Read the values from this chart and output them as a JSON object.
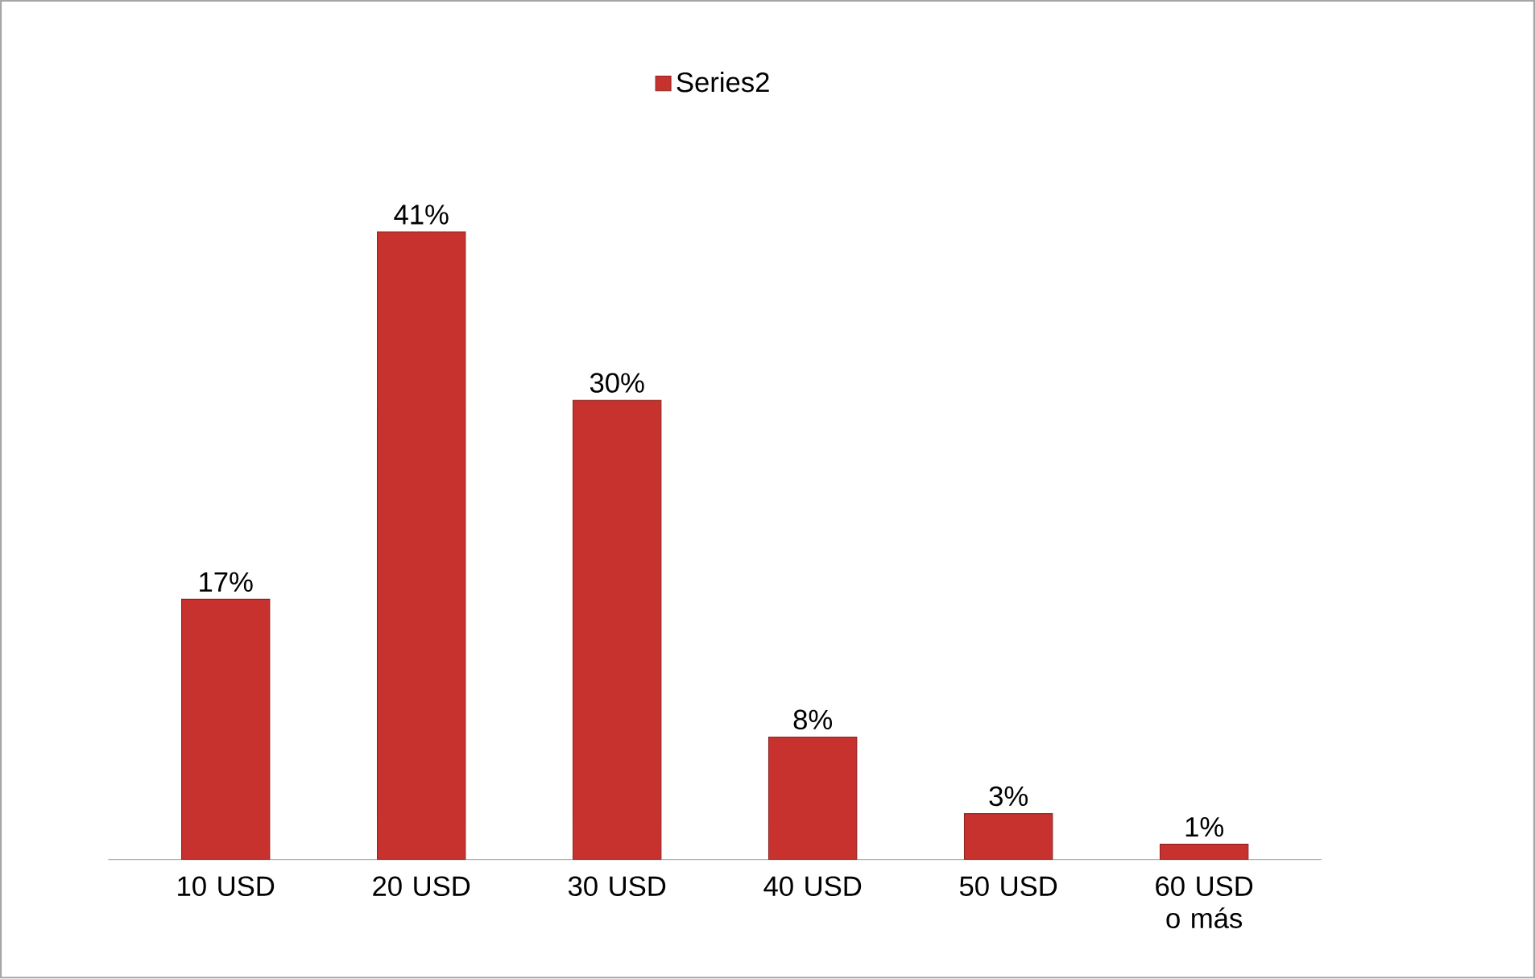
{
  "chart_data": {
    "type": "bar",
    "categories": [
      "10 USD",
      "20 USD",
      "30 USD",
      "40 USD",
      "50 USD",
      "60 USD o más"
    ],
    "series": [
      {
        "name": "Series2",
        "color": "#c8322e",
        "values": [
          17,
          41,
          30,
          8,
          3,
          1
        ],
        "value_labels": [
          "17%",
          "41%",
          "30%",
          "8%",
          "3%",
          "1%"
        ]
      }
    ],
    "legend": "top"
  }
}
